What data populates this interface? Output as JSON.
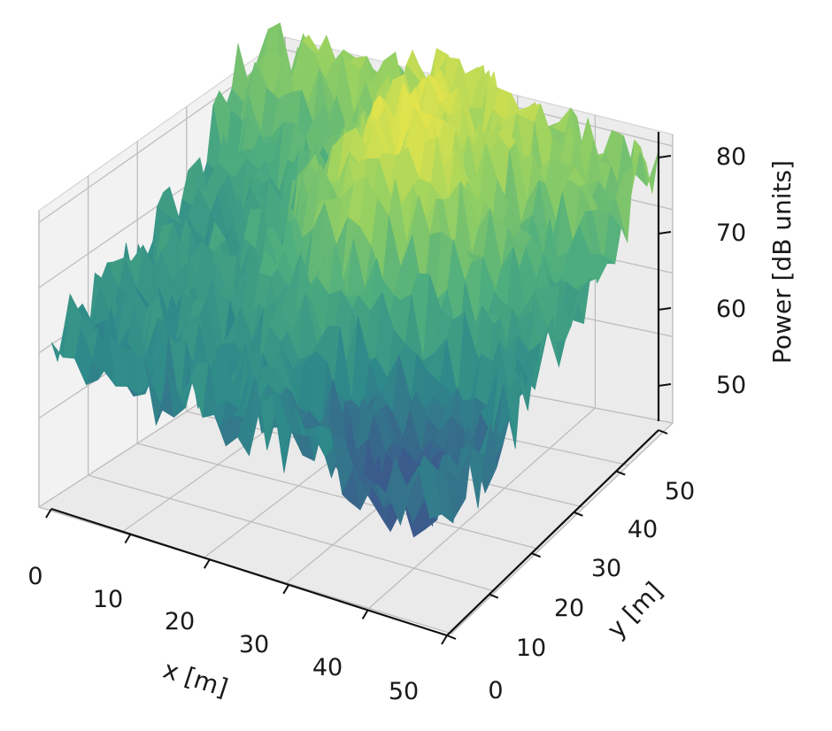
{
  "chart_data": {
    "type": "surface3d",
    "colormap": "viridis (restricted to mid-upper range)",
    "colors": [
      "#3b5b8c",
      "#2e8a8a",
      "#4fae7e",
      "#97d162",
      "#e8e54a"
    ],
    "xlabel": "x [m]",
    "ylabel": "y [m]",
    "zlabel": "Power [dB units]",
    "xlim": [
      0,
      50
    ],
    "ylim": [
      0,
      50
    ],
    "zlim": [
      45,
      82
    ],
    "x_ticks": [
      "0",
      "10",
      "20",
      "30",
      "40",
      "50"
    ],
    "y_ticks": [
      "0",
      "10",
      "20",
      "30",
      "40",
      "50"
    ],
    "z_ticks": [
      "50",
      "60",
      "70",
      "80"
    ],
    "grid": true,
    "surface_description_points": [
      {
        "x": 0,
        "y": 0,
        "z": 55
      },
      {
        "x": 25,
        "y": 25,
        "z": 70
      },
      {
        "x": 30,
        "y": 30,
        "z": 74
      },
      {
        "x": 40,
        "y": 10,
        "z": 48
      },
      {
        "x": 50,
        "y": 50,
        "z": 72
      },
      {
        "x": 0,
        "y": 50,
        "z": 62
      }
    ]
  }
}
